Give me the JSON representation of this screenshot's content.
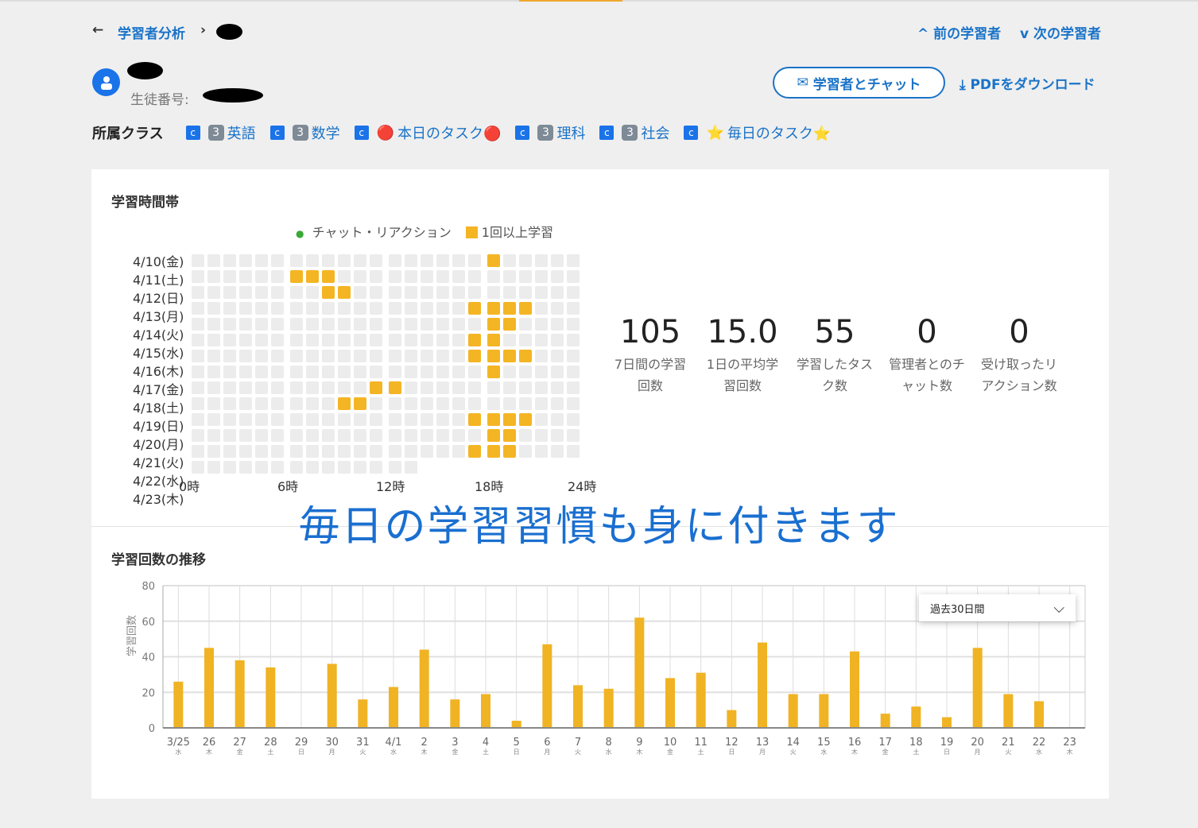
{
  "nav": {
    "back_label": "学習者分析",
    "prev_label": "前の学習者",
    "next_label": "次の学習者"
  },
  "student": {
    "id_label": "生徒番号:"
  },
  "actions": {
    "chat_label": "学習者とチャット",
    "pdf_label": "PDFをダウンロード"
  },
  "classes": {
    "label": "所属クラス",
    "items": [
      {
        "badge": "3",
        "name": "英語"
      },
      {
        "badge": "3",
        "name": "数学"
      },
      {
        "badge": "🔴",
        "name": "本日のタスク🔴"
      },
      {
        "badge": "3",
        "name": "理科"
      },
      {
        "badge": "3",
        "name": "社会"
      },
      {
        "badge": "⭐",
        "name": "毎日のタスク⭐"
      }
    ]
  },
  "heatmap": {
    "title": "学習時間帯",
    "legend": {
      "chat": "チャット・リアクション",
      "study": "1回以上学習"
    },
    "rows": [
      "4/10(金)",
      "4/11(土)",
      "4/12(日)",
      "4/13(月)",
      "4/14(火)",
      "4/15(水)",
      "4/16(木)",
      "4/17(金)",
      "4/18(土)",
      "4/19(日)",
      "4/20(月)",
      "4/21(火)",
      "4/22(水)",
      "4/23(木)"
    ],
    "hour_labels": [
      "0時",
      "6時",
      "12時",
      "18時",
      "24時"
    ],
    "studied_hours": [
      [
        18
      ],
      [
        6,
        7,
        8
      ],
      [
        8,
        9
      ],
      [
        17,
        18,
        19,
        20
      ],
      [
        18,
        19
      ],
      [
        17,
        18
      ],
      [
        17,
        18,
        19,
        20
      ],
      [
        18
      ],
      [
        11,
        12
      ],
      [
        9,
        10
      ],
      [
        17,
        18,
        19,
        20
      ],
      [
        18,
        19
      ],
      [
        17,
        18,
        19
      ],
      []
    ],
    "row_hours_shown": [
      24,
      24,
      24,
      24,
      24,
      24,
      24,
      24,
      24,
      24,
      24,
      24,
      24,
      14
    ],
    "colors": {
      "on": "#f4b524",
      "off": "#ececec",
      "chat": "#3aa935"
    }
  },
  "stats": [
    {
      "value": "105",
      "label": "7日間の学習回数"
    },
    {
      "value": "15.0",
      "label": "1日の平均学習回数"
    },
    {
      "value": "55",
      "label": "学習したタスク数"
    },
    {
      "value": "0",
      "label": "管理者とのチャット数"
    },
    {
      "value": "0",
      "label": "受け取ったリアクション数"
    }
  ],
  "caption": "毎日の学習習慣も身に付きます",
  "trend": {
    "title": "学習回数の推移",
    "range_select": "過去30日間"
  },
  "chart_data": {
    "type": "bar",
    "ylabel": "学習回数",
    "ylim": [
      0,
      80
    ],
    "yticks": [
      0,
      20,
      40,
      60,
      80
    ],
    "grid": true,
    "categories": [
      "3/25",
      "26",
      "27",
      "28",
      "29",
      "30",
      "31",
      "4/1",
      "2",
      "3",
      "4",
      "5",
      "6",
      "7",
      "8",
      "9",
      "10",
      "11",
      "12",
      "13",
      "14",
      "15",
      "16",
      "17",
      "18",
      "19",
      "20",
      "21",
      "22",
      "23"
    ],
    "weekdays": [
      "水",
      "木",
      "金",
      "土",
      "日",
      "月",
      "火",
      "水",
      "木",
      "金",
      "土",
      "日",
      "月",
      "火",
      "水",
      "木",
      "金",
      "土",
      "日",
      "月",
      "火",
      "水",
      "木",
      "金",
      "土",
      "日",
      "月",
      "火",
      "水",
      "木"
    ],
    "values": [
      26,
      45,
      38,
      34,
      0,
      36,
      16,
      23,
      44,
      16,
      19,
      4,
      47,
      24,
      22,
      62,
      28,
      31,
      10,
      48,
      19,
      19,
      43,
      8,
      12,
      6,
      45,
      19,
      15,
      0
    ],
    "color": "#f0b323"
  }
}
